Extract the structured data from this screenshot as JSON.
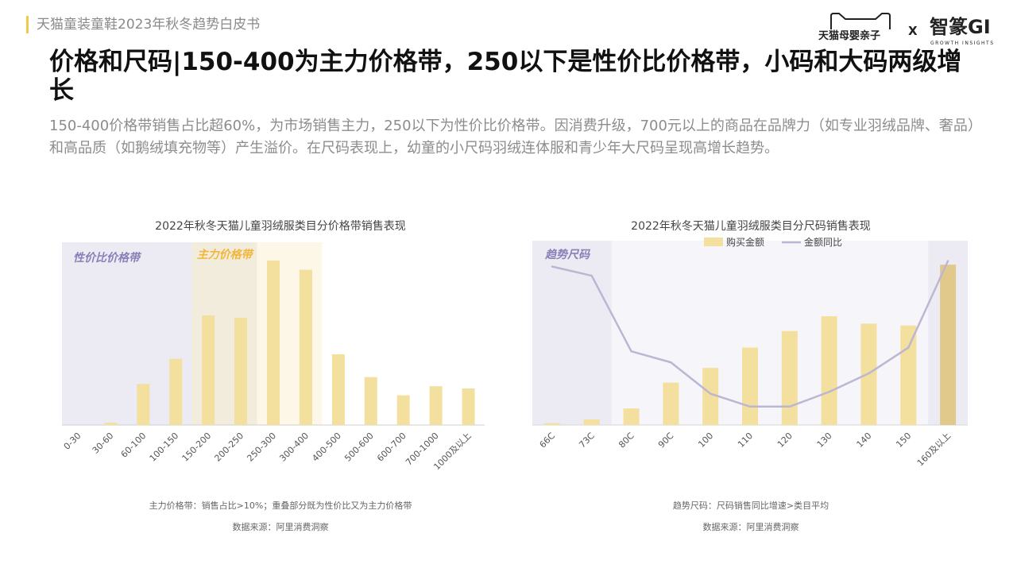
{
  "header": {
    "report_title": "天猫童装童鞋2023年秋冬趋势白皮书",
    "brand_tmall": "天猫母婴亲子",
    "brand_x": "X",
    "brand_zz": "智篆GI",
    "brand_zz_sub": "GROWTH INSIGHTS"
  },
  "main": {
    "title": "价格和尺码|150-400为主力价格带，250以下是性价比价格带，小码和大码两级增长",
    "subtitle": "150-400价格带销售占比超60%，为市场销售主力，250以下为性价比价格带。因消费升级，700元以上的商品在品牌力（如专业羽绒品牌、奢品）和高品质（如鹅绒填充物等）产生溢价。在尺码表现上，幼童的小尺码羽绒连体服和青少年大尺码呈现高增长趋势。"
  },
  "colors": {
    "bar": "#f3df9e",
    "bar_dark": "#e0c98a",
    "line": "#bdb6d3",
    "band_value": "#ecebf3",
    "band_overlap": "#f2ecdc",
    "band_main": "#fcf7e6",
    "band_label_value": "#8b7fb8",
    "band_label_main": "#f2b63a"
  },
  "chart_data": [
    {
      "type": "bar",
      "title": "2022年秋冬天猫儿童羽绒服类目分价格带销售表现",
      "categories": [
        "0-30",
        "30-60",
        "60-100",
        "100-150",
        "150-200",
        "200-250",
        "250-300",
        "300-400",
        "400-500",
        "500-600",
        "600-700",
        "700-1000",
        "1000及以上"
      ],
      "values": [
        0,
        1,
        18,
        29,
        48,
        47,
        72,
        68,
        31,
        21,
        13,
        17,
        16
      ],
      "ylim": [
        0,
        80
      ],
      "bands": [
        {
          "label": "性价比价格带",
          "from_index": 0,
          "to_index": 5,
          "kind": "value"
        },
        {
          "label": "主力价格带",
          "from_index": 4,
          "to_index": 7,
          "kind": "main"
        }
      ],
      "note": "主力价格带：销售占比>10%；重叠部分既为性价比又为主力价格带",
      "source": "数据来源：阿里消费洞察"
    },
    {
      "type": "bar",
      "title": "2022年秋冬天猫儿童羽绒服类目分尺码销售表现",
      "categories": [
        "66C",
        "73C",
        "80C",
        "90C",
        "100",
        "110",
        "120",
        "130",
        "140",
        "150",
        "160及以上"
      ],
      "series": [
        {
          "name": "购买金额",
          "type": "bar",
          "values": [
            1,
            3,
            9,
            23,
            31,
            42,
            51,
            59,
            55,
            54,
            87
          ]
        },
        {
          "name": "金额同比",
          "type": "line",
          "values": [
            86,
            81,
            40,
            34,
            17,
            10,
            10,
            18,
            28,
            42,
            89
          ]
        }
      ],
      "ylim": [
        0,
        100
      ],
      "legend": "top-center",
      "bands": [
        {
          "label": "趋势尺码",
          "from_index": 0,
          "to_index": 1,
          "kind": "value"
        },
        {
          "label": "",
          "from_index": 10,
          "to_index": 10,
          "kind": "value"
        }
      ],
      "note": "趋势尺码：尺码销售同比增速>类目平均",
      "source": "数据来源：阿里消费洞察"
    }
  ]
}
